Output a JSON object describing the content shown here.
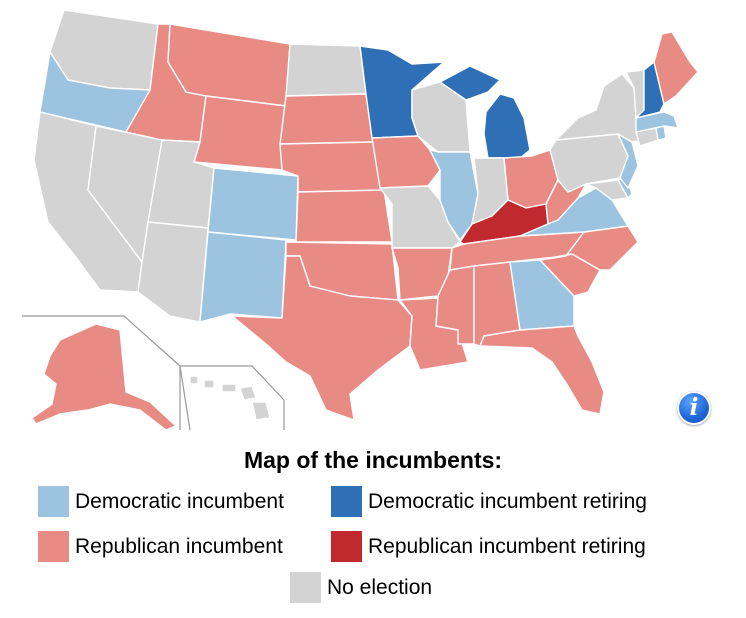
{
  "colors": {
    "dem_incumbent": "#9cc3df",
    "dem_retiring": "#2f6fb5",
    "rep_incumbent": "#e98b85",
    "rep_retiring": "#c02a2e",
    "no_election": "#d3d3d3"
  },
  "map": {
    "states": {
      "WA": "no_election",
      "OR": "dem_incumbent",
      "CA": "no_election",
      "NV": "no_election",
      "ID": "rep_incumbent",
      "MT": "rep_incumbent",
      "WY": "rep_incumbent",
      "UT": "no_election",
      "AZ": "no_election",
      "CO": "dem_incumbent",
      "NM": "dem_incumbent",
      "ND": "no_election",
      "SD": "rep_incumbent",
      "NE": "rep_incumbent",
      "KS": "rep_incumbent",
      "OK": "rep_incumbent",
      "TX": "rep_incumbent",
      "MN": "dem_retiring",
      "IA": "rep_incumbent",
      "MO": "no_election",
      "AR": "rep_incumbent",
      "LA": "rep_incumbent",
      "WI": "no_election",
      "IL": "dem_incumbent",
      "MI": "dem_retiring",
      "IN": "no_election",
      "OH": "rep_incumbent",
      "KY": "rep_retiring",
      "TN": "rep_incumbent",
      "MS": "rep_incumbent",
      "AL": "rep_incumbent",
      "GA": "dem_incumbent",
      "FL": "rep_incumbent",
      "SC": "rep_incumbent",
      "NC": "rep_incumbent",
      "VA": "dem_incumbent",
      "WV": "rep_incumbent",
      "MD": "no_election",
      "DE": "dem_incumbent",
      "PA": "no_election",
      "NJ": "dem_incumbent",
      "NY": "no_election",
      "CT": "no_election",
      "RI": "dem_incumbent",
      "MA": "dem_incumbent",
      "VT": "no_election",
      "NH": "dem_retiring",
      "ME": "rep_incumbent",
      "AK": "rep_incumbent",
      "HI": "no_election"
    }
  },
  "info_button": {
    "glyph": "i"
  },
  "legend": {
    "title": "Map of the incumbents:",
    "items": [
      {
        "key": "dem_incumbent",
        "label": "Democratic incumbent"
      },
      {
        "key": "dem_retiring",
        "label": "Democratic incumbent retiring"
      },
      {
        "key": "rep_incumbent",
        "label": "Republican incumbent"
      },
      {
        "key": "rep_retiring",
        "label": "Republican incumbent retiring"
      },
      {
        "key": "no_election",
        "label": "No election"
      }
    ]
  }
}
